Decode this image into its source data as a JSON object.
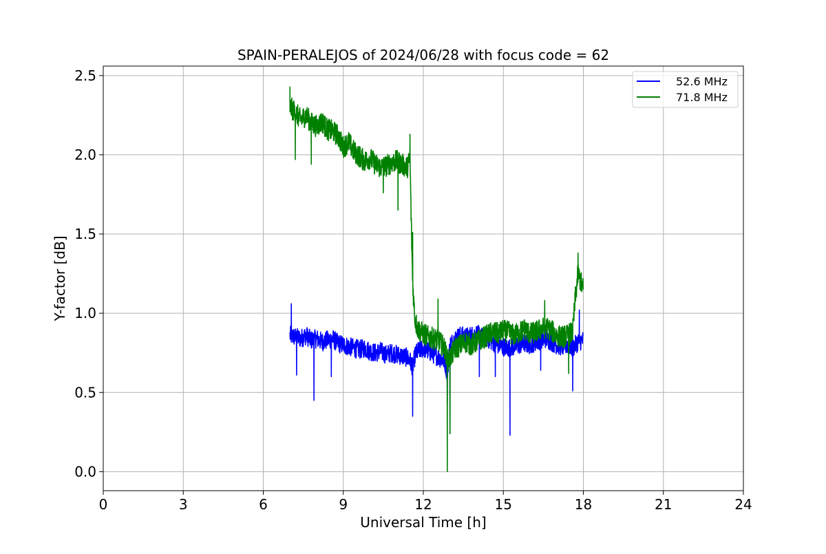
{
  "chart_data": {
    "type": "line",
    "title": "SPAIN-PERALEJOS of 2024/06/28 with focus code = 62",
    "xlabel": "Universal Time [h]",
    "ylabel": "Y-factor [dB]",
    "xlim": [
      0,
      24
    ],
    "ylim": [
      -0.12,
      2.56
    ],
    "xticks": [
      0,
      3,
      6,
      9,
      12,
      15,
      18,
      21,
      24
    ],
    "xtick_labels": [
      "0",
      "3",
      "6",
      "9",
      "12",
      "15",
      "18",
      "21",
      "24"
    ],
    "yticks": [
      0.0,
      0.5,
      1.0,
      1.5,
      2.0,
      2.5
    ],
    "ytick_labels": [
      "0.0",
      "0.5",
      "1.0",
      "1.5",
      "2.0",
      "2.5"
    ],
    "grid": true,
    "legend_position": "top-right",
    "series": [
      {
        "name": "52.6 MHz",
        "color": "#0000ff",
        "x": [
          7.0,
          7.2,
          7.4,
          7.6,
          7.8,
          8.0,
          8.2,
          8.4,
          8.6,
          8.8,
          9.0,
          9.2,
          9.4,
          9.6,
          9.8,
          10.0,
          10.2,
          10.4,
          10.6,
          10.8,
          11.0,
          11.2,
          11.4,
          11.5,
          11.6,
          11.7,
          11.8,
          12.0,
          12.2,
          12.4,
          12.6,
          12.8,
          12.9,
          13.0,
          13.2,
          13.4,
          13.6,
          13.8,
          14.0,
          14.2,
          14.4,
          14.6,
          14.8,
          15.0,
          15.2,
          15.4,
          15.6,
          15.8,
          16.0,
          16.2,
          16.4,
          16.6,
          16.8,
          17.0,
          17.2,
          17.4,
          17.6,
          17.8,
          18.0
        ],
        "y": [
          0.86,
          0.85,
          0.84,
          0.86,
          0.83,
          0.84,
          0.82,
          0.83,
          0.84,
          0.81,
          0.8,
          0.79,
          0.78,
          0.77,
          0.78,
          0.76,
          0.75,
          0.76,
          0.74,
          0.75,
          0.74,
          0.73,
          0.72,
          0.7,
          0.66,
          0.74,
          0.76,
          0.78,
          0.76,
          0.74,
          0.72,
          0.7,
          0.62,
          0.8,
          0.84,
          0.86,
          0.85,
          0.86,
          0.87,
          0.85,
          0.84,
          0.82,
          0.8,
          0.79,
          0.78,
          0.79,
          0.8,
          0.81,
          0.8,
          0.82,
          0.83,
          0.84,
          0.82,
          0.8,
          0.79,
          0.8,
          0.78,
          0.82,
          0.83
        ],
        "noise": 0.06,
        "spikes": [
          [
            7.05,
            1.06
          ],
          [
            7.25,
            0.61
          ],
          [
            7.9,
            0.45
          ],
          [
            8.55,
            0.6
          ],
          [
            11.6,
            0.35
          ],
          [
            12.9,
            0.44
          ],
          [
            13.0,
            0.24
          ],
          [
            14.1,
            0.6
          ],
          [
            14.7,
            0.6
          ],
          [
            15.25,
            0.23
          ],
          [
            16.4,
            0.64
          ],
          [
            17.6,
            0.51
          ],
          [
            17.85,
            1.02
          ]
        ]
      },
      {
        "name": "71.8 MHz",
        "color": "#008000",
        "x": [
          7.0,
          7.2,
          7.4,
          7.6,
          7.8,
          8.0,
          8.2,
          8.4,
          8.6,
          8.8,
          9.0,
          9.2,
          9.4,
          9.6,
          9.8,
          10.0,
          10.2,
          10.4,
          10.6,
          10.8,
          11.0,
          11.2,
          11.4,
          11.5,
          11.55,
          11.6,
          11.65,
          11.7,
          11.8,
          12.0,
          12.2,
          12.4,
          12.6,
          12.8,
          12.9,
          13.0,
          13.2,
          13.4,
          13.6,
          13.8,
          14.0,
          14.2,
          14.4,
          14.6,
          14.8,
          15.0,
          15.2,
          15.4,
          15.6,
          15.8,
          16.0,
          16.2,
          16.4,
          16.6,
          16.8,
          17.0,
          17.2,
          17.4,
          17.6,
          17.7,
          17.8,
          17.9,
          18.0
        ],
        "y": [
          2.3,
          2.27,
          2.22,
          2.25,
          2.2,
          2.18,
          2.21,
          2.16,
          2.15,
          2.12,
          2.05,
          2.08,
          2.02,
          1.99,
          1.96,
          1.98,
          1.94,
          1.92,
          1.93,
          1.95,
          1.96,
          1.94,
          1.92,
          1.98,
          1.55,
          1.2,
          1.05,
          0.95,
          0.9,
          0.87,
          0.85,
          0.84,
          0.82,
          0.78,
          0.7,
          0.72,
          0.78,
          0.8,
          0.82,
          0.8,
          0.82,
          0.84,
          0.86,
          0.88,
          0.87,
          0.89,
          0.88,
          0.86,
          0.88,
          0.9,
          0.87,
          0.88,
          0.9,
          0.91,
          0.89,
          0.86,
          0.85,
          0.86,
          0.88,
          1.1,
          1.25,
          1.2,
          1.15
        ],
        "noise": 0.07,
        "spikes": [
          [
            7.0,
            2.43
          ],
          [
            7.2,
            1.97
          ],
          [
            7.8,
            1.94
          ],
          [
            10.5,
            1.76
          ],
          [
            11.05,
            1.65
          ],
          [
            11.5,
            2.13
          ],
          [
            11.6,
            1.51
          ],
          [
            12.55,
            1.09
          ],
          [
            12.9,
            0.0
          ],
          [
            13.0,
            0.24
          ],
          [
            16.55,
            1.08
          ],
          [
            17.45,
            0.62
          ],
          [
            17.8,
            1.38
          ]
        ]
      }
    ]
  }
}
